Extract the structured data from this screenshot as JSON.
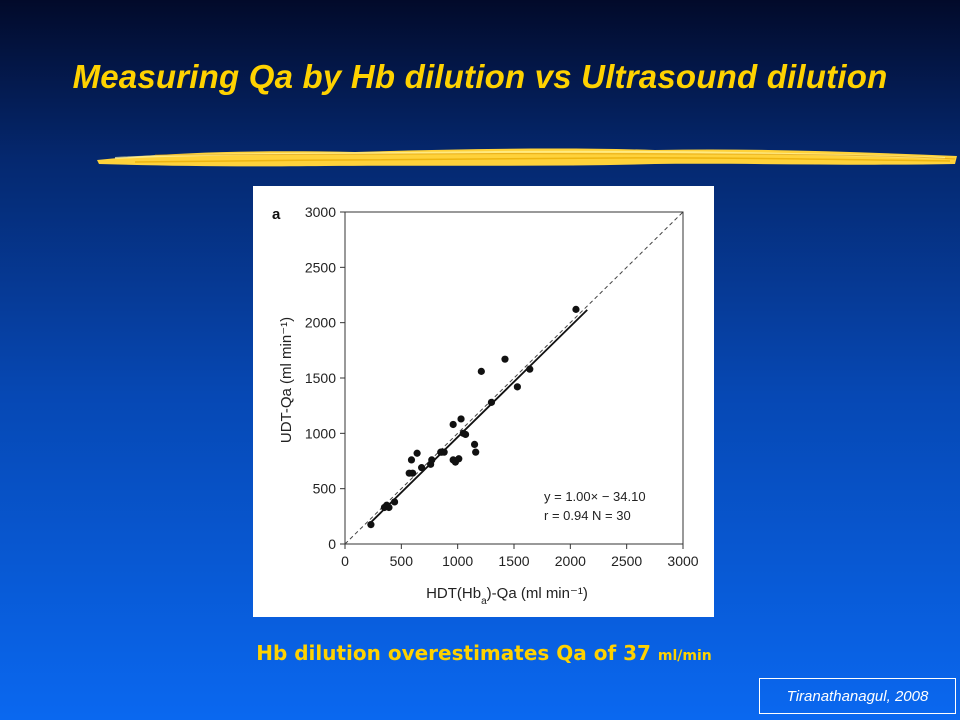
{
  "slide": {
    "title": "Measuring Qa by Hb dilution vs Ultrasound dilution",
    "caption_main": "Hb dilution overestimates Qa of 37 ",
    "caption_unit": "ml/min",
    "citation": "Tiranathanagul, 2008",
    "colors": {
      "title": "#ffd200",
      "caption": "#ffd200",
      "brush": "#ffd23a"
    }
  },
  "chart_data": {
    "type": "scatter",
    "panel_label": "a",
    "xlabel": "HDT(Hb_a)-Qa (ml min⁻¹)",
    "ylabel": "UDT-Qa (ml min⁻¹)",
    "xlim": [
      0,
      3000
    ],
    "ylim": [
      0,
      3000
    ],
    "xticks": [
      0,
      500,
      1000,
      1500,
      2000,
      2500,
      3000
    ],
    "yticks": [
      0,
      500,
      1000,
      1500,
      2000,
      2500,
      3000
    ],
    "grid": false,
    "annotation_line1": "y = 1.00× − 34.10",
    "annotation_line2": "r = 0.94  N = 30",
    "identity_line": {
      "style": "dashed",
      "from": [
        0,
        0
      ],
      "to": [
        3000,
        3000
      ]
    },
    "regression_line": {
      "slope": 1.0,
      "intercept": -34.1,
      "x_range": [
        230,
        2150
      ]
    },
    "points": [
      {
        "x": 230,
        "y": 175
      },
      {
        "x": 350,
        "y": 330
      },
      {
        "x": 370,
        "y": 350
      },
      {
        "x": 390,
        "y": 330
      },
      {
        "x": 440,
        "y": 380
      },
      {
        "x": 570,
        "y": 640
      },
      {
        "x": 590,
        "y": 760
      },
      {
        "x": 640,
        "y": 820
      },
      {
        "x": 680,
        "y": 690
      },
      {
        "x": 760,
        "y": 720
      },
      {
        "x": 770,
        "y": 760
      },
      {
        "x": 850,
        "y": 830
      },
      {
        "x": 880,
        "y": 830
      },
      {
        "x": 960,
        "y": 1080
      },
      {
        "x": 960,
        "y": 760
      },
      {
        "x": 980,
        "y": 740
      },
      {
        "x": 1010,
        "y": 770
      },
      {
        "x": 1030,
        "y": 1130
      },
      {
        "x": 1050,
        "y": 1000
      },
      {
        "x": 1070,
        "y": 990
      },
      {
        "x": 1150,
        "y": 900
      },
      {
        "x": 1160,
        "y": 830
      },
      {
        "x": 1210,
        "y": 1560
      },
      {
        "x": 1300,
        "y": 1280
      },
      {
        "x": 1420,
        "y": 1670
      },
      {
        "x": 1530,
        "y": 1420
      },
      {
        "x": 1640,
        "y": 1580
      },
      {
        "x": 2050,
        "y": 2120
      },
      {
        "x": 600,
        "y": 640
      },
      {
        "x": 860,
        "y": 830
      }
    ]
  }
}
